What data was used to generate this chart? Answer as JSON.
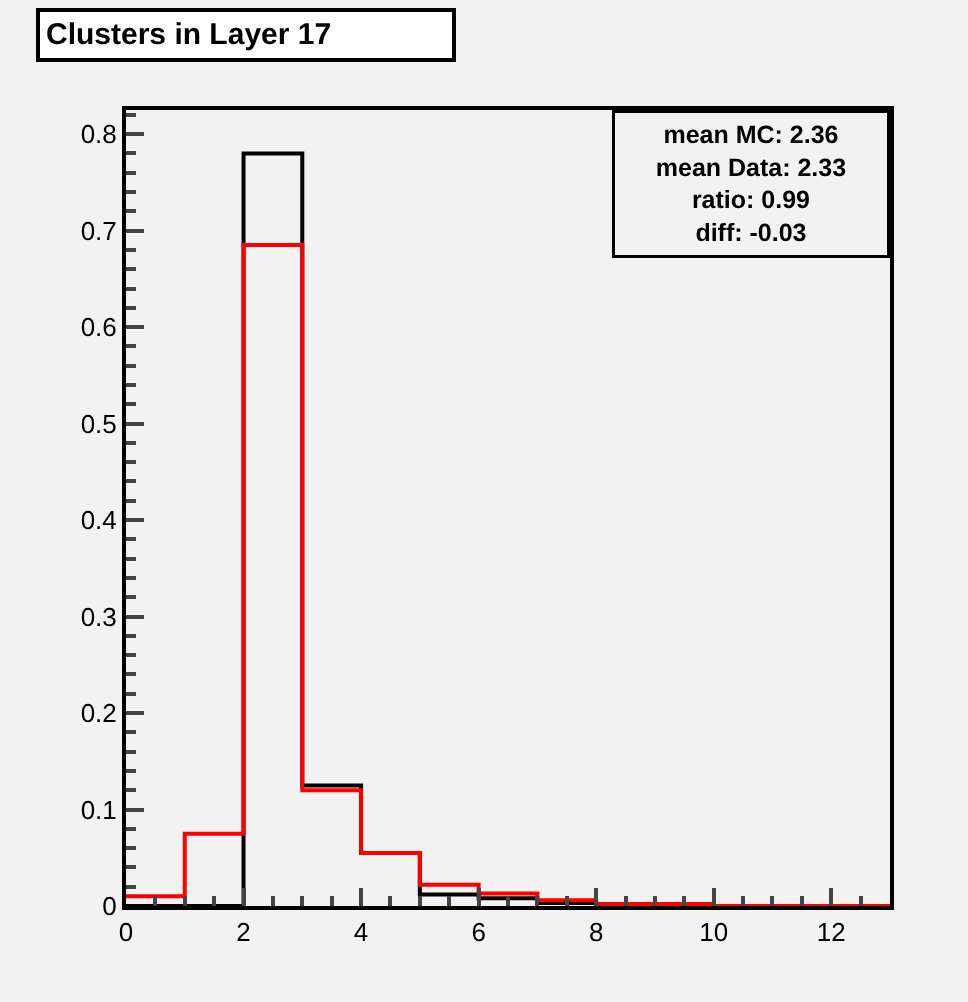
{
  "chart_data": {
    "type": "histogram",
    "title": "Clusters in Layer 17",
    "bins": [
      0,
      1,
      2,
      3,
      4,
      5,
      6,
      7,
      8,
      9,
      10,
      11,
      12,
      13
    ],
    "series": [
      {
        "color": "#000000",
        "values": [
          0,
          0,
          0.78,
          0.125,
          0.055,
          0.012,
          0.008,
          0.003,
          0.001,
          0.001,
          0,
          0,
          0
        ]
      },
      {
        "color": "#ff0000",
        "values": [
          0.01,
          0.075,
          0.685,
          0.12,
          0.055,
          0.022,
          0.013,
          0.006,
          0.002,
          0.002,
          0,
          0,
          0
        ]
      }
    ],
    "xlim": [
      0,
      13
    ],
    "ylim": [
      0,
      0.825
    ],
    "xticks": [
      0,
      2,
      4,
      6,
      8,
      10,
      12
    ],
    "yticks": [
      0,
      0.1,
      0.2,
      0.3,
      0.4,
      0.5,
      0.6,
      0.7,
      0.8
    ],
    "annotations": [
      "mean MC: 2.36",
      "mean Data: 2.33",
      "ratio: 0.99",
      "diff: -0.03"
    ]
  }
}
